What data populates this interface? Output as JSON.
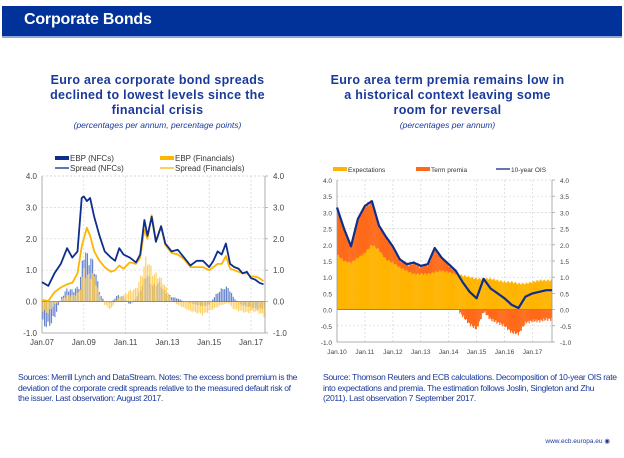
{
  "header": {
    "title": "Corporate Bonds"
  },
  "left_panel": {
    "title_lines": [
      "Euro area corporate bond spreads",
      "declined to lowest levels since the",
      "financial crisis"
    ],
    "subtitle": "(percentages per annum, percentage points)",
    "note": "Sources: Merrill Lynch and DataStream. Notes: The excess bond premium is the deviation of the corporate credit spreads relative to the measured default risk of the issuer. Last observation: August 2017."
  },
  "right_panel": {
    "title_lines": [
      "Euro area term premia remains low in",
      "a historical context leaving some",
      "room for reversal"
    ],
    "subtitle": "(percentages per annum)",
    "note": "Source: Thomson Reuters and ECB calculations. Decomposition of 10-year OIS rate into expectations and premia. The estimation follows Joslin, Singleton and Zhu (2011). Last observation 7 September 2017."
  },
  "footer": {
    "url": "www.ecb.europa.eu",
    "icon": "ecb-logo-icon"
  },
  "colors": {
    "brand": "#003299",
    "navy": "#0d2e8c",
    "gold": "#ffb400",
    "orange": "#ff6a1a",
    "light_blue": "#7b9ad6",
    "light_gold": "#ffd36b"
  },
  "chart_data": [
    {
      "type": "line",
      "title": "Euro area corporate bond spreads declined to lowest levels since the financial crisis",
      "subtitle": "(percentages per annum, percentage points)",
      "xlabel": "",
      "ylabel": "",
      "x_range": [
        2007.0,
        2017.67
      ],
      "ylim": [
        -1.0,
        4.0
      ],
      "yticks": [
        "4.0",
        "3.0",
        "2.0",
        "1.0",
        "0.0",
        "-1.0"
      ],
      "ytick_values": [
        4,
        3,
        2,
        1,
        0,
        -1
      ],
      "xtick_labels": [
        "Jan.07",
        "Jan.09",
        "Jan.11",
        "Jan.13",
        "Jan.15",
        "Jan.17"
      ],
      "xtick_values": [
        2007,
        2009,
        2011,
        2013,
        2015,
        2017
      ],
      "grid": true,
      "legend_position": "top",
      "legend": [
        {
          "label": "EBP (NFCs)",
          "kind": "bar",
          "color": "#0d2e8c"
        },
        {
          "label": "EBP (Financials)",
          "kind": "bar",
          "color": "#ffb400"
        },
        {
          "label": "Spread (NFCs)",
          "kind": "line",
          "color": "#0d2e8c"
        },
        {
          "label": "Spread (Financials)",
          "kind": "line",
          "color": "#ffb400"
        }
      ],
      "series": [
        {
          "name": "Spread (NFCs)",
          "kind": "line",
          "x": [
            2007.0,
            2007.3,
            2007.6,
            2007.9,
            2008.2,
            2008.45,
            2008.7,
            2008.9,
            2009.0,
            2009.15,
            2009.3,
            2009.5,
            2009.75,
            2010.0,
            2010.3,
            2010.5,
            2010.7,
            2010.9,
            2011.2,
            2011.5,
            2011.7,
            2011.9,
            2012.05,
            2012.25,
            2012.45,
            2012.7,
            2012.9,
            2013.2,
            2013.5,
            2013.8,
            2014.1,
            2014.4,
            2014.7,
            2015.0,
            2015.2,
            2015.4,
            2015.6,
            2015.8,
            2016.0,
            2016.2,
            2016.4,
            2016.6,
            2016.8,
            2017.0,
            2017.2,
            2017.4,
            2017.6
          ],
          "values": [
            0.62,
            0.5,
            0.9,
            1.2,
            1.7,
            1.4,
            1.6,
            3.3,
            3.35,
            3.2,
            3.3,
            2.7,
            2.1,
            1.6,
            1.4,
            1.3,
            1.7,
            1.5,
            1.4,
            1.25,
            1.5,
            2.6,
            2.1,
            2.7,
            1.9,
            2.4,
            1.85,
            1.6,
            1.65,
            1.4,
            1.15,
            1.3,
            1.3,
            1.1,
            1.3,
            1.6,
            1.5,
            1.85,
            1.2,
            1.1,
            1.05,
            0.9,
            0.95,
            0.75,
            0.7,
            0.6,
            0.55
          ]
        },
        {
          "name": "Spread (Financials)",
          "kind": "line",
          "x": [
            2007.0,
            2007.3,
            2007.6,
            2007.9,
            2008.2,
            2008.45,
            2008.7,
            2008.9,
            2009.0,
            2009.15,
            2009.3,
            2009.5,
            2009.75,
            2010.0,
            2010.3,
            2010.5,
            2010.7,
            2010.9,
            2011.2,
            2011.5,
            2011.7,
            2011.9,
            2012.05,
            2012.25,
            2012.45,
            2012.7,
            2012.9,
            2013.2,
            2013.5,
            2013.8,
            2014.1,
            2014.4,
            2014.7,
            2015.0,
            2015.2,
            2015.4,
            2015.6,
            2015.8,
            2016.0,
            2016.2,
            2016.4,
            2016.6,
            2016.8,
            2017.0,
            2017.2,
            2017.4,
            2017.6
          ],
          "values": [
            0.05,
            0.02,
            0.3,
            0.45,
            0.55,
            0.6,
            0.9,
            1.75,
            2.0,
            2.35,
            2.1,
            1.6,
            1.3,
            1.1,
            0.95,
            1.0,
            1.15,
            1.05,
            1.25,
            1.2,
            1.4,
            2.3,
            2.0,
            2.75,
            1.95,
            2.4,
            1.8,
            1.55,
            1.5,
            1.35,
            1.1,
            1.1,
            1.1,
            1.0,
            1.1,
            1.2,
            1.2,
            1.45,
            1.05,
            1.0,
            0.95,
            0.9,
            0.9,
            0.8,
            0.8,
            0.75,
            0.65
          ]
        },
        {
          "name": "EBP (NFCs)",
          "kind": "bar",
          "x": [
            2007.0,
            2007.3,
            2007.6,
            2007.9,
            2008.2,
            2008.5,
            2008.8,
            2009.0,
            2009.2,
            2009.4,
            2009.6,
            2009.8,
            2010.0,
            2010.3,
            2010.6,
            2010.9,
            2011.2,
            2011.5,
            2011.8,
            2012.0,
            2012.3,
            2012.6,
            2012.9,
            2013.2,
            2013.5,
            2013.8,
            2014.1,
            2014.4,
            2014.7,
            2015.0,
            2015.3,
            2015.6,
            2015.9,
            2016.2,
            2016.5,
            2016.8,
            2017.1,
            2017.4,
            2017.6
          ],
          "values": [
            -0.7,
            -0.8,
            -0.5,
            0.1,
            0.4,
            0.35,
            0.5,
            1.6,
            1.4,
            1.3,
            0.8,
            0.2,
            0.0,
            -0.05,
            0.2,
            0.15,
            -0.1,
            0.1,
            0.5,
            0.9,
            0.5,
            0.6,
            0.3,
            0.15,
            0.1,
            0.0,
            -0.05,
            -0.1,
            -0.15,
            -0.1,
            0.2,
            0.4,
            0.45,
            0.1,
            -0.1,
            -0.15,
            -0.2,
            -0.25,
            -0.2
          ]
        },
        {
          "name": "EBP (Financials)",
          "kind": "bar",
          "x": [
            2007.0,
            2007.3,
            2007.6,
            2007.9,
            2008.2,
            2008.5,
            2008.8,
            2009.0,
            2009.2,
            2009.4,
            2009.6,
            2009.8,
            2010.0,
            2010.3,
            2010.6,
            2010.9,
            2011.2,
            2011.5,
            2011.8,
            2012.0,
            2012.3,
            2012.6,
            2012.9,
            2013.2,
            2013.5,
            2013.8,
            2014.1,
            2014.4,
            2014.7,
            2015.0,
            2015.3,
            2015.6,
            2015.9,
            2016.2,
            2016.5,
            2016.8,
            2017.1,
            2017.4,
            2017.6
          ],
          "values": [
            -0.3,
            -0.35,
            -0.1,
            0.05,
            0.2,
            0.2,
            0.3,
            1.0,
            0.8,
            0.9,
            0.6,
            0.1,
            -0.1,
            -0.25,
            0.1,
            0.2,
            0.35,
            0.4,
            0.9,
            1.4,
            0.9,
            0.8,
            0.5,
            0.05,
            -0.1,
            -0.2,
            -0.3,
            -0.35,
            -0.4,
            -0.3,
            -0.2,
            -0.1,
            -0.05,
            -0.25,
            -0.3,
            -0.35,
            -0.3,
            -0.35,
            -0.45
          ]
        }
      ]
    },
    {
      "type": "area",
      "title": "Euro area term premia remains low in a historical context leaving some room for reversal",
      "subtitle": "(percentages per annum)",
      "xlabel": "",
      "ylabel": "",
      "x_range": [
        2010.0,
        2017.7
      ],
      "ylim": [
        -1.0,
        4.0
      ],
      "yticks": [
        "4.0",
        "3.5",
        "3.0",
        "2.5",
        "2.0",
        "1.5",
        "1.0",
        "0.5",
        "0.0",
        "-0.5",
        "-1.0"
      ],
      "ytick_values": [
        4,
        3.5,
        3,
        2.5,
        2,
        1.5,
        1,
        0.5,
        0,
        -0.5,
        -1
      ],
      "xtick_labels": [
        "Jan.10",
        "Jan.11",
        "Jan.12",
        "Jan.13",
        "Jan.14",
        "Jan.15",
        "Jan.16",
        "Jan.17"
      ],
      "xtick_values": [
        2010,
        2011,
        2012,
        2013,
        2014,
        2015,
        2016,
        2017
      ],
      "grid": true,
      "legend_position": "top",
      "legend": [
        {
          "label": "Expectations",
          "kind": "bar",
          "color": "#ffb400"
        },
        {
          "label": "Term premia",
          "kind": "bar",
          "color": "#ff6a1a"
        },
        {
          "label": "10-year OIS",
          "kind": "line",
          "color": "#0d2e8c"
        }
      ],
      "series": [
        {
          "name": "Expectations",
          "kind": "bar",
          "x": [
            2010.0,
            2010.25,
            2010.5,
            2010.75,
            2011.0,
            2011.25,
            2011.5,
            2011.75,
            2012.0,
            2012.25,
            2012.5,
            2012.75,
            2013.0,
            2013.25,
            2013.5,
            2013.75,
            2014.0,
            2014.25,
            2014.5,
            2014.75,
            2015.0,
            2015.25,
            2015.5,
            2015.75,
            2016.0,
            2016.25,
            2016.5,
            2016.75,
            2017.0,
            2017.25,
            2017.5,
            2017.7
          ],
          "values": [
            1.7,
            1.5,
            1.45,
            1.6,
            1.75,
            2.0,
            1.85,
            1.55,
            1.45,
            1.3,
            1.2,
            1.1,
            1.1,
            1.1,
            1.15,
            1.2,
            1.15,
            1.1,
            1.05,
            1.0,
            0.95,
            0.95,
            0.95,
            0.9,
            0.85,
            0.85,
            0.8,
            0.8,
            0.85,
            0.9,
            0.9,
            0.9
          ]
        },
        {
          "name": "Term premia",
          "kind": "bar",
          "x": [
            2010.0,
            2010.25,
            2010.5,
            2010.75,
            2011.0,
            2011.25,
            2011.5,
            2011.75,
            2012.0,
            2012.25,
            2012.5,
            2012.75,
            2013.0,
            2013.25,
            2013.5,
            2013.75,
            2014.0,
            2014.25,
            2014.5,
            2014.75,
            2015.0,
            2015.25,
            2015.5,
            2015.75,
            2016.0,
            2016.25,
            2016.5,
            2016.75,
            2017.0,
            2017.25,
            2017.5,
            2017.7
          ],
          "values": [
            1.45,
            1.0,
            0.5,
            1.2,
            1.45,
            1.35,
            0.75,
            0.7,
            0.5,
            0.25,
            0.2,
            0.35,
            0.25,
            0.3,
            0.75,
            0.4,
            0.25,
            0.1,
            -0.2,
            -0.45,
            -0.6,
            -0.05,
            -0.3,
            -0.4,
            -0.5,
            -0.7,
            -0.75,
            -0.4,
            -0.35,
            -0.35,
            -0.3,
            -0.3
          ]
        },
        {
          "name": "10-year OIS",
          "kind": "line",
          "x": [
            2010.0,
            2010.25,
            2010.5,
            2010.75,
            2011.0,
            2011.25,
            2011.5,
            2011.75,
            2012.0,
            2012.25,
            2012.5,
            2012.75,
            2013.0,
            2013.25,
            2013.5,
            2013.75,
            2014.0,
            2014.25,
            2014.5,
            2014.75,
            2015.0,
            2015.25,
            2015.5,
            2015.75,
            2016.0,
            2016.25,
            2016.5,
            2016.75,
            2017.0,
            2017.25,
            2017.5,
            2017.7
          ],
          "values": [
            3.15,
            2.5,
            1.95,
            2.8,
            3.2,
            3.35,
            2.6,
            2.25,
            1.95,
            1.55,
            1.4,
            1.45,
            1.35,
            1.4,
            1.9,
            1.6,
            1.4,
            1.2,
            0.85,
            0.55,
            0.35,
            0.95,
            0.65,
            0.5,
            0.35,
            0.15,
            0.05,
            0.4,
            0.5,
            0.55,
            0.6,
            0.6
          ]
        }
      ]
    }
  ]
}
